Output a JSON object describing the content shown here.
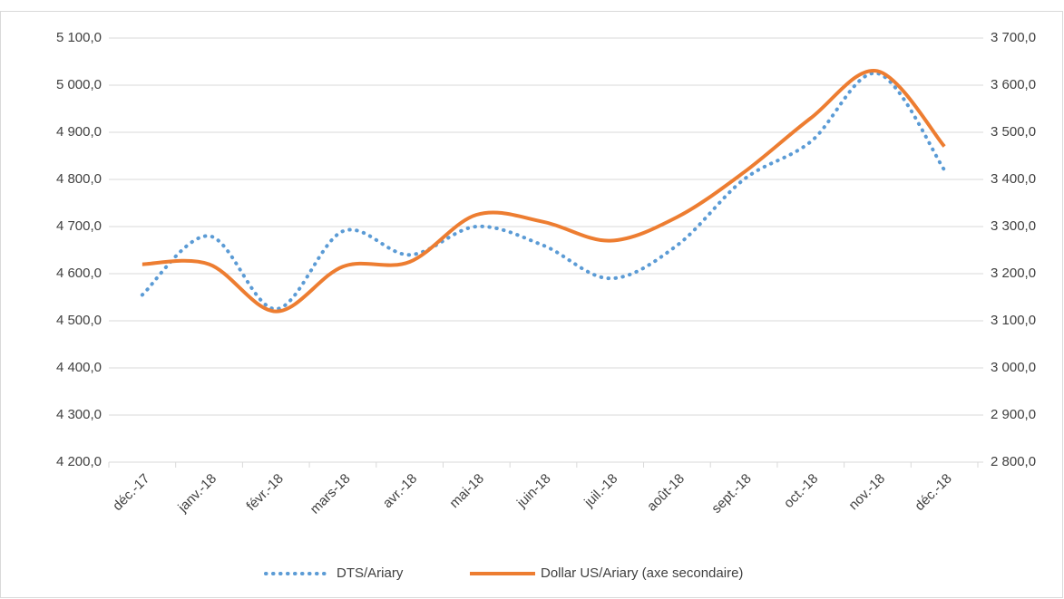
{
  "chart_data": {
    "type": "line",
    "categories": [
      "déc.-17",
      "janv.-18",
      "févr.-18",
      "mars-18",
      "avr.-18",
      "mai-18",
      "juin-18",
      "juil.-18",
      "août-18",
      "sept.-18",
      "oct.-18",
      "nov.-18",
      "déc.-18"
    ],
    "series": [
      {
        "name": "DTS/Ariary",
        "color": "#5b9bd5",
        "values": [
          4555,
          4680,
          4525,
          4690,
          4640,
          4700,
          4660,
          4590,
          4660,
          4800,
          4880,
          5025,
          4820
        ]
      },
      {
        "name": "Dollar US/Ariary (axe secondaire)",
        "color": "#ed7d31",
        "axis": "y2",
        "values": [
          3220,
          3220,
          3120,
          3215,
          3225,
          3325,
          3310,
          3270,
          3320,
          3415,
          3530,
          3630,
          3470
        ]
      }
    ],
    "ylim": [
      4200,
      5100
    ],
    "yticks": [
      {
        "value": 4200,
        "label": "4 200,0"
      },
      {
        "value": 4300,
        "label": "4 300,0"
      },
      {
        "value": 4400,
        "label": "4 400,0"
      },
      {
        "value": 4500,
        "label": "4 500,0"
      },
      {
        "value": 4600,
        "label": "4 600,0"
      },
      {
        "value": 4700,
        "label": "4 700,0"
      },
      {
        "value": 4800,
        "label": "4 800,0"
      },
      {
        "value": 4900,
        "label": "4 900,0"
      },
      {
        "value": 5000,
        "label": "5 000,0"
      },
      {
        "value": 5100,
        "label": "5 100,0"
      }
    ],
    "y2lim": [
      2800,
      3700
    ],
    "y2ticks": [
      {
        "value": 2800,
        "label": "2 800,0"
      },
      {
        "value": 2900,
        "label": "2 900,0"
      },
      {
        "value": 3000,
        "label": "3 000,0"
      },
      {
        "value": 3100,
        "label": "3 100,0"
      },
      {
        "value": 3200,
        "label": "3 200,0"
      },
      {
        "value": 3300,
        "label": "3 300,0"
      },
      {
        "value": 3400,
        "label": "3 400,0"
      },
      {
        "value": 3500,
        "label": "3 500,0"
      },
      {
        "value": 3600,
        "label": "3 600,0"
      },
      {
        "value": 3700,
        "label": "3 700,0"
      }
    ],
    "grid": true,
    "smooth": true,
    "legend": "bottom"
  }
}
